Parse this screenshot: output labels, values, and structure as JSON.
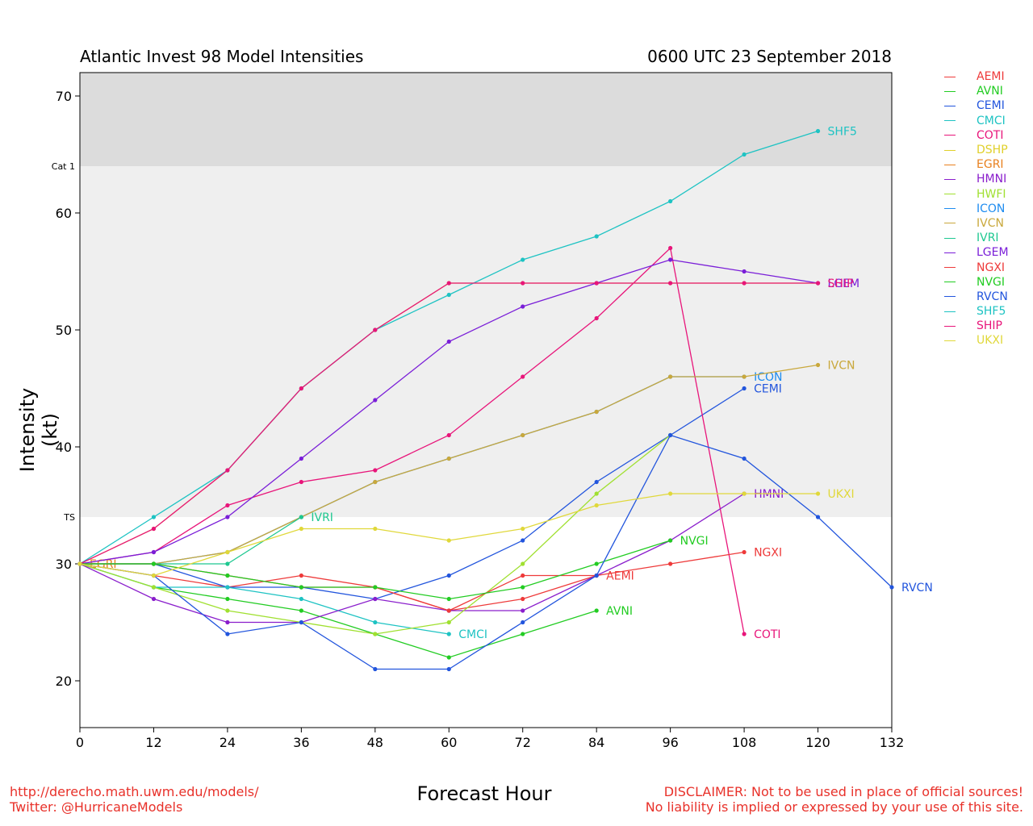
{
  "chart_data": {
    "type": "line",
    "title_left": "Atlantic Invest 98 Model Intensities",
    "title_right": "0600 UTC 23 September 2018",
    "xlabel": "Forecast Hour",
    "ylabel": "Intensity (kt)",
    "xlim": [
      0,
      132
    ],
    "ylim": [
      16,
      72
    ],
    "xticks": [
      0,
      12,
      24,
      36,
      48,
      60,
      72,
      84,
      96,
      108,
      120,
      132
    ],
    "yticks": [
      20,
      30,
      40,
      50,
      60,
      70
    ],
    "bands": [
      {
        "label": "TS",
        "from": 34,
        "to": 64,
        "color": "#efefef"
      },
      {
        "label": "Cat 1",
        "from": 64,
        "to": 72,
        "color": "#dcdcdc"
      }
    ],
    "series": [
      {
        "name": "AEMI",
        "color": "#ee3a3a",
        "x": [
          0,
          12,
          24,
          36,
          48,
          60,
          72,
          84
        ],
        "y": [
          30,
          29,
          28,
          29,
          28,
          26,
          27,
          29
        ],
        "label": "AEMI"
      },
      {
        "name": "AVNI",
        "color": "#22cc22",
        "x": [
          0,
          12,
          24,
          36,
          48,
          60,
          72,
          84
        ],
        "y": [
          30,
          28,
          27,
          26,
          24,
          22,
          24,
          26
        ],
        "label": "AVNI"
      },
      {
        "name": "CEMI",
        "color": "#2255dd",
        "x": [
          0,
          12,
          24,
          36,
          48,
          60,
          72,
          84,
          96,
          108
        ],
        "y": [
          30,
          30,
          28,
          28,
          27,
          29,
          32,
          37,
          41,
          45
        ],
        "label": "CEMI"
      },
      {
        "name": "CMCI",
        "color": "#1ec3c3",
        "x": [
          0,
          12,
          24,
          36,
          48,
          60
        ],
        "y": [
          30,
          28,
          28,
          27,
          25,
          24
        ],
        "label": "CMCI"
      },
      {
        "name": "COTI",
        "color": "#e8157a",
        "x": [
          0,
          12,
          24,
          36,
          48,
          60,
          72,
          84,
          96,
          108
        ],
        "y": [
          30,
          31,
          35,
          37,
          38,
          41,
          46,
          51,
          57,
          24
        ],
        "label": "COTI"
      },
      {
        "name": "DSHP",
        "color": "#e0d02a",
        "x": [
          0,
          12,
          24,
          36,
          48,
          60,
          72,
          84,
          96,
          108,
          120
        ],
        "y": [
          30,
          33,
          38,
          45,
          50,
          54,
          54,
          54,
          54,
          54,
          54
        ],
        "label": ""
      },
      {
        "name": "EGRI",
        "color": "#e8801e",
        "x": [
          0
        ],
        "y": [
          30
        ],
        "label": "EGRI"
      },
      {
        "name": "HMNI",
        "color": "#8a1ecc",
        "x": [
          0,
          12,
          24,
          36,
          48,
          60,
          72,
          84,
          96,
          108
        ],
        "y": [
          30,
          27,
          25,
          25,
          27,
          26,
          26,
          29,
          32,
          36
        ],
        "label": "HMNI"
      },
      {
        "name": "HWFI",
        "color": "#a0e030",
        "x": [
          0,
          12,
          24,
          36,
          48,
          60,
          72,
          84,
          96
        ],
        "y": [
          30,
          28,
          26,
          25,
          24,
          25,
          30,
          36,
          41
        ],
        "label": ""
      },
      {
        "name": "ICON",
        "color": "#1e8cf0",
        "x": [
          0,
          12,
          24,
          36,
          48,
          60,
          72,
          84,
          96,
          108
        ],
        "y": [
          30,
          30,
          31,
          34,
          37,
          39,
          41,
          43,
          46,
          46
        ],
        "label": "ICON"
      },
      {
        "name": "IVCN",
        "color": "#c9a83c",
        "x": [
          0,
          12,
          24,
          36,
          48,
          60,
          72,
          84,
          96,
          108,
          120
        ],
        "y": [
          30,
          30,
          31,
          34,
          37,
          39,
          41,
          43,
          46,
          46,
          47
        ],
        "label": "IVCN"
      },
      {
        "name": "IVRI",
        "color": "#1ec890",
        "x": [
          0,
          12,
          24,
          36
        ],
        "y": [
          30,
          30,
          30,
          34
        ],
        "label": "IVRI"
      },
      {
        "name": "LGEM",
        "color": "#7a1ed8",
        "x": [
          0,
          12,
          24,
          36,
          48,
          60,
          72,
          84,
          96,
          108,
          120
        ],
        "y": [
          30,
          31,
          34,
          39,
          44,
          49,
          52,
          54,
          56,
          55,
          54
        ],
        "label": "LGEM"
      },
      {
        "name": "NGXI",
        "color": "#ee3a3a",
        "x": [
          0,
          12,
          24,
          36,
          48,
          60,
          72,
          84,
          96,
          108
        ],
        "y": [
          30,
          30,
          29,
          28,
          28,
          26,
          29,
          29,
          30,
          31
        ],
        "label": "NGXI"
      },
      {
        "name": "NVGI",
        "color": "#22cc22",
        "x": [
          0,
          12,
          24,
          36,
          48,
          60,
          72,
          84,
          96
        ],
        "y": [
          30,
          30,
          29,
          28,
          28,
          27,
          28,
          30,
          32
        ],
        "label": "NVGI"
      },
      {
        "name": "RVCN",
        "color": "#2255dd",
        "x": [
          0,
          12,
          24,
          36,
          48,
          60,
          72,
          84,
          96,
          108,
          120,
          132
        ],
        "y": [
          30,
          29,
          24,
          25,
          21,
          21,
          25,
          29,
          41,
          39,
          34,
          28
        ],
        "label": "RVCN"
      },
      {
        "name": "SHF5",
        "color": "#1ec3c3",
        "x": [
          0,
          12,
          24,
          36,
          48,
          60,
          72,
          84,
          96,
          108,
          120
        ],
        "y": [
          30,
          34,
          38,
          45,
          50,
          53,
          56,
          58,
          61,
          65,
          67
        ],
        "label": "SHF5"
      },
      {
        "name": "SHIP",
        "color": "#e8157a",
        "x": [
          0,
          12,
          24,
          36,
          48,
          60,
          72,
          84,
          96,
          108,
          120
        ],
        "y": [
          30,
          33,
          38,
          45,
          50,
          54,
          54,
          54,
          54,
          54,
          54
        ],
        "label": "SHIP"
      },
      {
        "name": "UKXI",
        "color": "#e0d83a",
        "x": [
          0,
          12,
          24,
          36,
          48,
          60,
          72,
          84,
          96,
          108,
          120
        ],
        "y": [
          30,
          29,
          31,
          33,
          33,
          32,
          33,
          35,
          36,
          36,
          36
        ],
        "label": "UKXI"
      }
    ]
  },
  "footer": {
    "left_line1": "http://derecho.math.uwm.edu/models/",
    "left_line2": "Twitter: @HurricaneModels",
    "right_line1": "DISCLAIMER: Not to be used in place of official sources!",
    "right_line2": "No liability is implied or expressed by your use of this site."
  }
}
